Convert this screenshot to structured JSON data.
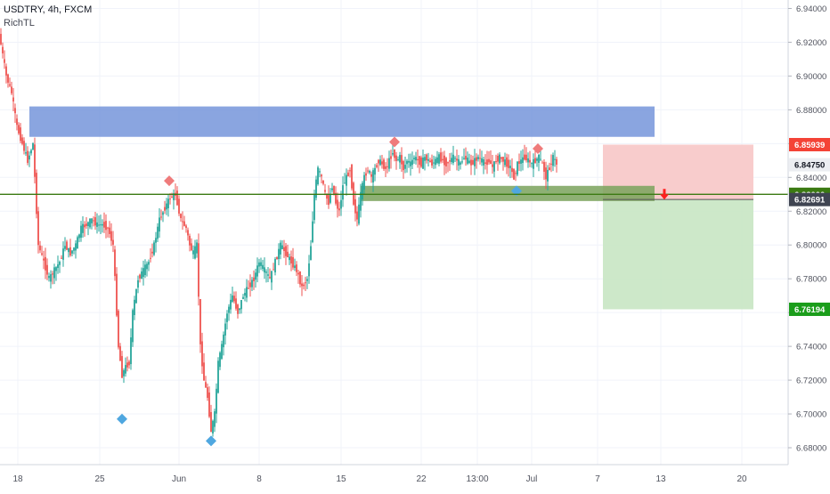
{
  "header": {
    "symbol": "USDTRY, 4h, FXCM",
    "indicator": "RichTL"
  },
  "colors": {
    "up": "#26a69a",
    "down": "#ef5350",
    "blue_zone": "#6d8fd8",
    "green_zone": "#7aa25c",
    "support_line": "#3b7a12",
    "stop_zone": "#f7c6c7",
    "target_zone": "#c8e6c3",
    "diamond_red": "#ef7b7b",
    "diamond_blue": "#4fa7e0",
    "arrow": "#ff1f1f",
    "tag_red": "#f44336",
    "tag_dark": "#3f4451",
    "tag_light": "#eceef2",
    "tag_green": "#1b9d1b",
    "tag_olive": "#3b7a12"
  },
  "chart_data": {
    "type": "candlestick",
    "symbol": "USDTRY",
    "timeframe": "4h",
    "source": "FXCM",
    "ylim": [
      6.67,
      6.945
    ],
    "x_ticks": [
      "18",
      "25",
      "Jun",
      "8",
      "15",
      "22",
      "13:00",
      "Jul",
      "7",
      "13",
      "20"
    ],
    "y_ticks": [
      "6.94000",
      "6.92000",
      "6.90000",
      "6.88000",
      "6.86000",
      "6.84000",
      "6.82000",
      "6.80000",
      "6.78000",
      "6.76000",
      "6.74000",
      "6.72000",
      "6.70000",
      "6.68000"
    ],
    "price_labels": [
      {
        "id": "stop",
        "value": "6.85939"
      },
      {
        "id": "last",
        "value": "6.84750"
      },
      {
        "id": "support",
        "value": "6.83000"
      },
      {
        "id": "entry",
        "value": "6.82691"
      },
      {
        "id": "target",
        "value": "6.76194"
      }
    ],
    "levels": {
      "support": 6.83,
      "entry": 6.82691,
      "stop": 6.85939,
      "target": 6.76194
    },
    "resistance_zone": [
      6.864,
      6.882
    ],
    "price_path": [
      [
        0,
        6.925
      ],
      [
        8,
        6.9
      ],
      [
        14,
        6.89
      ],
      [
        20,
        6.87
      ],
      [
        26,
        6.86
      ],
      [
        32,
        6.85
      ],
      [
        38,
        6.86
      ],
      [
        44,
        6.8
      ],
      [
        50,
        6.79
      ],
      [
        56,
        6.78
      ],
      [
        62,
        6.785
      ],
      [
        68,
        6.79
      ],
      [
        74,
        6.8
      ],
      [
        80,
        6.795
      ],
      [
        86,
        6.8
      ],
      [
        92,
        6.81
      ],
      [
        98,
        6.812
      ],
      [
        104,
        6.815
      ],
      [
        110,
        6.812
      ],
      [
        116,
        6.812
      ],
      [
        122,
        6.81
      ],
      [
        128,
        6.8
      ],
      [
        134,
        6.74
      ],
      [
        138,
        6.723
      ],
      [
        142,
        6.728
      ],
      [
        146,
        6.73
      ],
      [
        150,
        6.76
      ],
      [
        156,
        6.78
      ],
      [
        162,
        6.785
      ],
      [
        168,
        6.79
      ],
      [
        174,
        6.8
      ],
      [
        180,
        6.815
      ],
      [
        186,
        6.822
      ],
      [
        192,
        6.828
      ],
      [
        198,
        6.83
      ],
      [
        204,
        6.815
      ],
      [
        210,
        6.81
      ],
      [
        214,
        6.8
      ],
      [
        218,
        6.795
      ],
      [
        222,
        6.8
      ],
      [
        226,
        6.74
      ],
      [
        230,
        6.72
      ],
      [
        234,
        6.71
      ],
      [
        238,
        6.69
      ],
      [
        242,
        6.7
      ],
      [
        246,
        6.73
      ],
      [
        250,
        6.74
      ],
      [
        256,
        6.76
      ],
      [
        262,
        6.77
      ],
      [
        268,
        6.76
      ],
      [
        274,
        6.77
      ],
      [
        280,
        6.775
      ],
      [
        286,
        6.78
      ],
      [
        292,
        6.79
      ],
      [
        298,
        6.785
      ],
      [
        304,
        6.78
      ],
      [
        310,
        6.79
      ],
      [
        316,
        6.8
      ],
      [
        322,
        6.795
      ],
      [
        328,
        6.79
      ],
      [
        334,
        6.785
      ],
      [
        340,
        6.775
      ],
      [
        346,
        6.78
      ],
      [
        350,
        6.8
      ],
      [
        354,
        6.83
      ],
      [
        358,
        6.845
      ],
      [
        362,
        6.84
      ],
      [
        366,
        6.83
      ],
      [
        370,
        6.825
      ],
      [
        374,
        6.835
      ],
      [
        378,
        6.825
      ],
      [
        382,
        6.82
      ],
      [
        386,
        6.835
      ],
      [
        390,
        6.84
      ],
      [
        394,
        6.845
      ],
      [
        398,
        6.825
      ],
      [
        402,
        6.815
      ],
      [
        406,
        6.83
      ],
      [
        410,
        6.84
      ],
      [
        414,
        6.845
      ],
      [
        418,
        6.84
      ],
      [
        422,
        6.845
      ],
      [
        426,
        6.85
      ],
      [
        430,
        6.848
      ],
      [
        434,
        6.845
      ],
      [
        438,
        6.85
      ],
      [
        442,
        6.855
      ],
      [
        446,
        6.85
      ],
      [
        450,
        6.852
      ],
      [
        454,
        6.845
      ],
      [
        458,
        6.85
      ],
      [
        462,
        6.848
      ],
      [
        466,
        6.852
      ],
      [
        470,
        6.85
      ],
      [
        474,
        6.848
      ],
      [
        478,
        6.852
      ],
      [
        482,
        6.85
      ],
      [
        486,
        6.848
      ],
      [
        490,
        6.85
      ],
      [
        494,
        6.852
      ],
      [
        498,
        6.85
      ],
      [
        502,
        6.848
      ],
      [
        506,
        6.85
      ],
      [
        510,
        6.852
      ],
      [
        514,
        6.85
      ],
      [
        518,
        6.848
      ],
      [
        522,
        6.852
      ],
      [
        526,
        6.85
      ],
      [
        530,
        6.848
      ],
      [
        534,
        6.85
      ],
      [
        538,
        6.852
      ],
      [
        542,
        6.85
      ],
      [
        546,
        6.848
      ],
      [
        550,
        6.85
      ],
      [
        554,
        6.846
      ],
      [
        558,
        6.85
      ],
      [
        562,
        6.852
      ],
      [
        566,
        6.85
      ],
      [
        570,
        6.848
      ],
      [
        574,
        6.846
      ],
      [
        578,
        6.84
      ],
      [
        582,
        6.848
      ],
      [
        586,
        6.85
      ],
      [
        590,
        6.852
      ],
      [
        594,
        6.85
      ],
      [
        598,
        6.848
      ],
      [
        602,
        6.85
      ],
      [
        606,
        6.852
      ],
      [
        610,
        6.848
      ],
      [
        614,
        6.84
      ],
      [
        618,
        6.846
      ],
      [
        622,
        6.852
      ],
      [
        626,
        6.848
      ]
    ],
    "markers": [
      {
        "type": "high",
        "color": "red",
        "x": 190,
        "y": 6.838
      },
      {
        "type": "high",
        "color": "red",
        "x": 443,
        "y": 6.861
      },
      {
        "type": "high",
        "color": "red",
        "x": 604,
        "y": 6.857
      },
      {
        "type": "low",
        "color": "blue",
        "x": 137,
        "y": 6.697
      },
      {
        "type": "low",
        "color": "blue",
        "x": 237,
        "y": 6.684
      },
      {
        "type": "low",
        "color": "blue",
        "x": 580,
        "y": 6.832
      }
    ],
    "current_price": 6.8475,
    "signal": "sell"
  }
}
